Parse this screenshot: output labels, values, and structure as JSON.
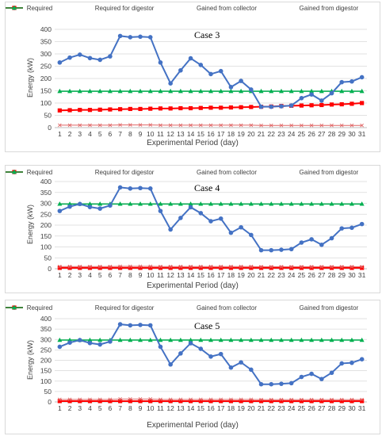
{
  "legend_labels": [
    "Required",
    "Required for digestor",
    "Gained from collector",
    "Gained from digestor"
  ],
  "colors": {
    "required": "#4472c4",
    "required_for_digestor": "#e06666",
    "gained_from_collector": "#ff0000",
    "gained_from_digestor": "#00b050",
    "grid": "#d9d9d9",
    "axis_text": "#404040"
  },
  "chart_data": [
    {
      "type": "line",
      "title": "Case 3",
      "xlabel": "Experimental Period (day)",
      "ylabel": "Energy (kW)",
      "ylim": [
        0,
        400
      ],
      "yticks": [
        0,
        50,
        100,
        150,
        200,
        250,
        300,
        350,
        400
      ],
      "grid": true,
      "legend_position": "top",
      "x": [
        1,
        2,
        3,
        4,
        5,
        6,
        7,
        8,
        9,
        10,
        11,
        12,
        13,
        14,
        15,
        16,
        17,
        18,
        19,
        20,
        21,
        22,
        23,
        24,
        25,
        26,
        27,
        28,
        29,
        30,
        31
      ],
      "series": [
        {
          "name": "Required",
          "values": [
            265,
            285,
            297,
            283,
            276,
            290,
            373,
            368,
            370,
            368,
            265,
            180,
            233,
            282,
            255,
            218,
            230,
            165,
            190,
            155,
            85,
            85,
            87,
            90,
            120,
            135,
            110,
            140,
            185,
            188,
            205
          ]
        },
        {
          "name": "Required for digestor",
          "values": [
            10,
            10,
            10,
            10,
            10,
            10,
            11,
            11,
            11,
            11,
            10,
            10,
            10,
            10,
            10,
            10,
            10,
            10,
            10,
            10,
            9,
            9,
            9,
            9,
            9,
            9,
            9,
            9,
            9,
            9,
            9
          ]
        },
        {
          "name": "Gained from collector",
          "values": [
            70,
            71,
            72,
            72,
            73,
            74,
            75,
            76,
            76,
            77,
            78,
            78,
            79,
            79,
            80,
            81,
            81,
            82,
            83,
            84,
            85,
            86,
            88,
            89,
            90,
            91,
            92,
            94,
            95,
            97,
            100
          ]
        },
        {
          "name": "Gained from digestor",
          "values": [
            148,
            148,
            148,
            148,
            148,
            148,
            148,
            148,
            148,
            148,
            148,
            148,
            148,
            148,
            148,
            148,
            148,
            148,
            148,
            148,
            148,
            148,
            148,
            148,
            148,
            148,
            148,
            148,
            148,
            148,
            148
          ]
        }
      ]
    },
    {
      "type": "line",
      "title": "Case 4",
      "xlabel": "Experimental Period (day)",
      "ylabel": "Energy (kW)",
      "ylim": [
        0,
        400
      ],
      "yticks": [
        0,
        50,
        100,
        150,
        200,
        250,
        300,
        350,
        400
      ],
      "grid": true,
      "legend_position": "top",
      "x": [
        1,
        2,
        3,
        4,
        5,
        6,
        7,
        8,
        9,
        10,
        11,
        12,
        13,
        14,
        15,
        16,
        17,
        18,
        19,
        20,
        21,
        22,
        23,
        24,
        25,
        26,
        27,
        28,
        29,
        30,
        31
      ],
      "series": [
        {
          "name": "Required",
          "values": [
            265,
            285,
            297,
            283,
            276,
            290,
            373,
            368,
            370,
            368,
            265,
            180,
            233,
            282,
            255,
            218,
            230,
            165,
            190,
            155,
            85,
            85,
            87,
            90,
            120,
            135,
            110,
            140,
            185,
            188,
            205
          ]
        },
        {
          "name": "Required for digestor",
          "values": [
            10,
            10,
            10,
            10,
            10,
            10,
            11,
            11,
            11,
            11,
            10,
            10,
            10,
            10,
            10,
            10,
            10,
            10,
            10,
            10,
            9,
            9,
            9,
            9,
            9,
            9,
            9,
            9,
            9,
            9,
            9
          ]
        },
        {
          "name": "Gained from collector",
          "values": [
            4,
            4,
            4,
            4,
            4,
            4,
            4,
            4,
            4,
            4,
            4,
            4,
            4,
            4,
            4,
            4,
            4,
            4,
            4,
            4,
            4,
            4,
            4,
            4,
            4,
            4,
            4,
            4,
            4,
            4,
            4
          ]
        },
        {
          "name": "Gained from digestor",
          "values": [
            297,
            297,
            297,
            297,
            297,
            297,
            297,
            297,
            297,
            297,
            297,
            297,
            297,
            297,
            297,
            297,
            297,
            297,
            297,
            297,
            297,
            297,
            297,
            297,
            297,
            297,
            297,
            297,
            297,
            297,
            297
          ]
        }
      ]
    },
    {
      "type": "line",
      "title": "Case 5",
      "xlabel": "Experimental Period (day)",
      "ylabel": "Energy (kW)",
      "ylim": [
        0,
        400
      ],
      "yticks": [
        0,
        50,
        100,
        150,
        200,
        250,
        300,
        350,
        400
      ],
      "grid": true,
      "legend_position": "top",
      "x": [
        1,
        2,
        3,
        4,
        5,
        6,
        7,
        8,
        9,
        10,
        11,
        12,
        13,
        14,
        15,
        16,
        17,
        18,
        19,
        20,
        21,
        22,
        23,
        24,
        25,
        26,
        27,
        28,
        29,
        30,
        31
      ],
      "series": [
        {
          "name": "Required",
          "values": [
            265,
            285,
            297,
            283,
            276,
            290,
            373,
            368,
            370,
            368,
            265,
            180,
            233,
            282,
            255,
            218,
            230,
            165,
            190,
            155,
            85,
            85,
            87,
            90,
            120,
            135,
            110,
            140,
            185,
            188,
            205
          ]
        },
        {
          "name": "Required for digestor",
          "values": [
            12,
            12,
            12,
            12,
            12,
            12,
            14,
            14,
            14,
            14,
            12,
            12,
            12,
            12,
            12,
            12,
            12,
            12,
            12,
            12,
            11,
            11,
            11,
            11,
            11,
            11,
            11,
            11,
            11,
            11,
            11
          ]
        },
        {
          "name": "Gained from collector",
          "values": [
            4,
            4,
            4,
            4,
            4,
            4,
            4,
            4,
            4,
            4,
            4,
            4,
            4,
            4,
            4,
            4,
            4,
            4,
            4,
            4,
            4,
            4,
            4,
            4,
            4,
            4,
            4,
            4,
            4,
            4,
            4
          ]
        },
        {
          "name": "Gained from digestor",
          "values": [
            297,
            297,
            297,
            297,
            297,
            297,
            297,
            297,
            297,
            297,
            297,
            297,
            297,
            297,
            297,
            297,
            297,
            297,
            297,
            297,
            297,
            297,
            297,
            297,
            297,
            297,
            297,
            297,
            297,
            297,
            297
          ]
        }
      ]
    }
  ]
}
